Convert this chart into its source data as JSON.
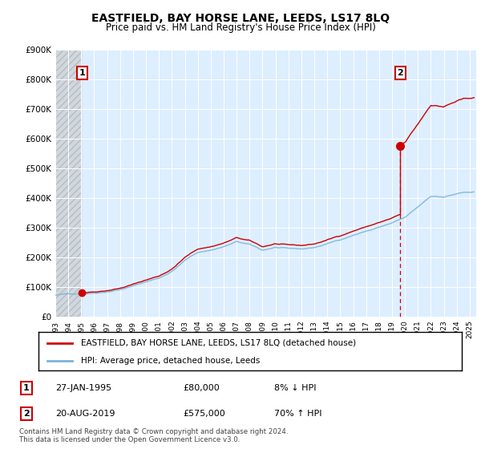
{
  "title": "EASTFIELD, BAY HORSE LANE, LEEDS, LS17 8LQ",
  "subtitle": "Price paid vs. HM Land Registry's House Price Index (HPI)",
  "hpi_color": "#7ab4d8",
  "sale_color": "#cc0000",
  "plot_bg_color": "#ddeeff",
  "legend_sale_label": "EASTFIELD, BAY HORSE LANE, LEEDS, LS17 8LQ (detached house)",
  "legend_hpi_label": "HPI: Average price, detached house, Leeds",
  "table_rows": [
    [
      "1",
      "27-JAN-1995",
      "£80,000",
      "8% ↓ HPI"
    ],
    [
      "2",
      "20-AUG-2019",
      "£575,000",
      "70% ↑ HPI"
    ]
  ],
  "footer": "Contains HM Land Registry data © Crown copyright and database right 2024.\nThis data is licensed under the Open Government Licence v3.0.",
  "ylim": [
    0,
    900000
  ],
  "yticks": [
    0,
    100000,
    200000,
    300000,
    400000,
    500000,
    600000,
    700000,
    800000,
    900000
  ],
  "ytick_labels": [
    "£0",
    "£100K",
    "£200K",
    "£300K",
    "£400K",
    "£500K",
    "£600K",
    "£700K",
    "£800K",
    "£900K"
  ],
  "xlim_start": 1993.0,
  "xlim_end": 2025.5,
  "sale_year_1": 1995.07,
  "sale_year_2": 2019.63,
  "sale_price_1": 80000,
  "sale_price_2": 575000
}
